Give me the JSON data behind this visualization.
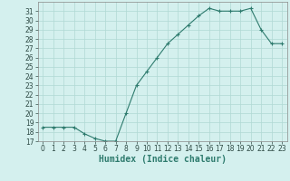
{
  "x": [
    0,
    1,
    2,
    3,
    4,
    5,
    6,
    7,
    8,
    9,
    10,
    11,
    12,
    13,
    14,
    15,
    16,
    17,
    18,
    19,
    20,
    21,
    22,
    23
  ],
  "y": [
    18.5,
    18.5,
    18.5,
    18.5,
    17.8,
    17.3,
    17.0,
    17.0,
    20.0,
    23.0,
    24.5,
    26.0,
    27.5,
    28.5,
    29.5,
    30.5,
    31.3,
    31.0,
    31.0,
    31.0,
    31.3,
    29.0,
    27.5,
    27.5
  ],
  "line_color": "#2e7b6e",
  "marker": "+",
  "bg_color": "#d4f0ee",
  "grid_color": "#b0d8d4",
  "xlabel": "Humidex (Indice chaleur)",
  "xlim": [
    -0.5,
    23.5
  ],
  "ylim": [
    17,
    32
  ],
  "yticks": [
    17,
    18,
    19,
    20,
    21,
    22,
    23,
    24,
    25,
    26,
    27,
    28,
    29,
    30,
    31
  ],
  "xticks": [
    0,
    1,
    2,
    3,
    4,
    5,
    6,
    7,
    8,
    9,
    10,
    11,
    12,
    13,
    14,
    15,
    16,
    17,
    18,
    19,
    20,
    21,
    22,
    23
  ],
  "tick_label_fontsize": 5.5,
  "xlabel_fontsize": 7,
  "linewidth": 0.8,
  "markersize": 3,
  "markeredgewidth": 0.8
}
